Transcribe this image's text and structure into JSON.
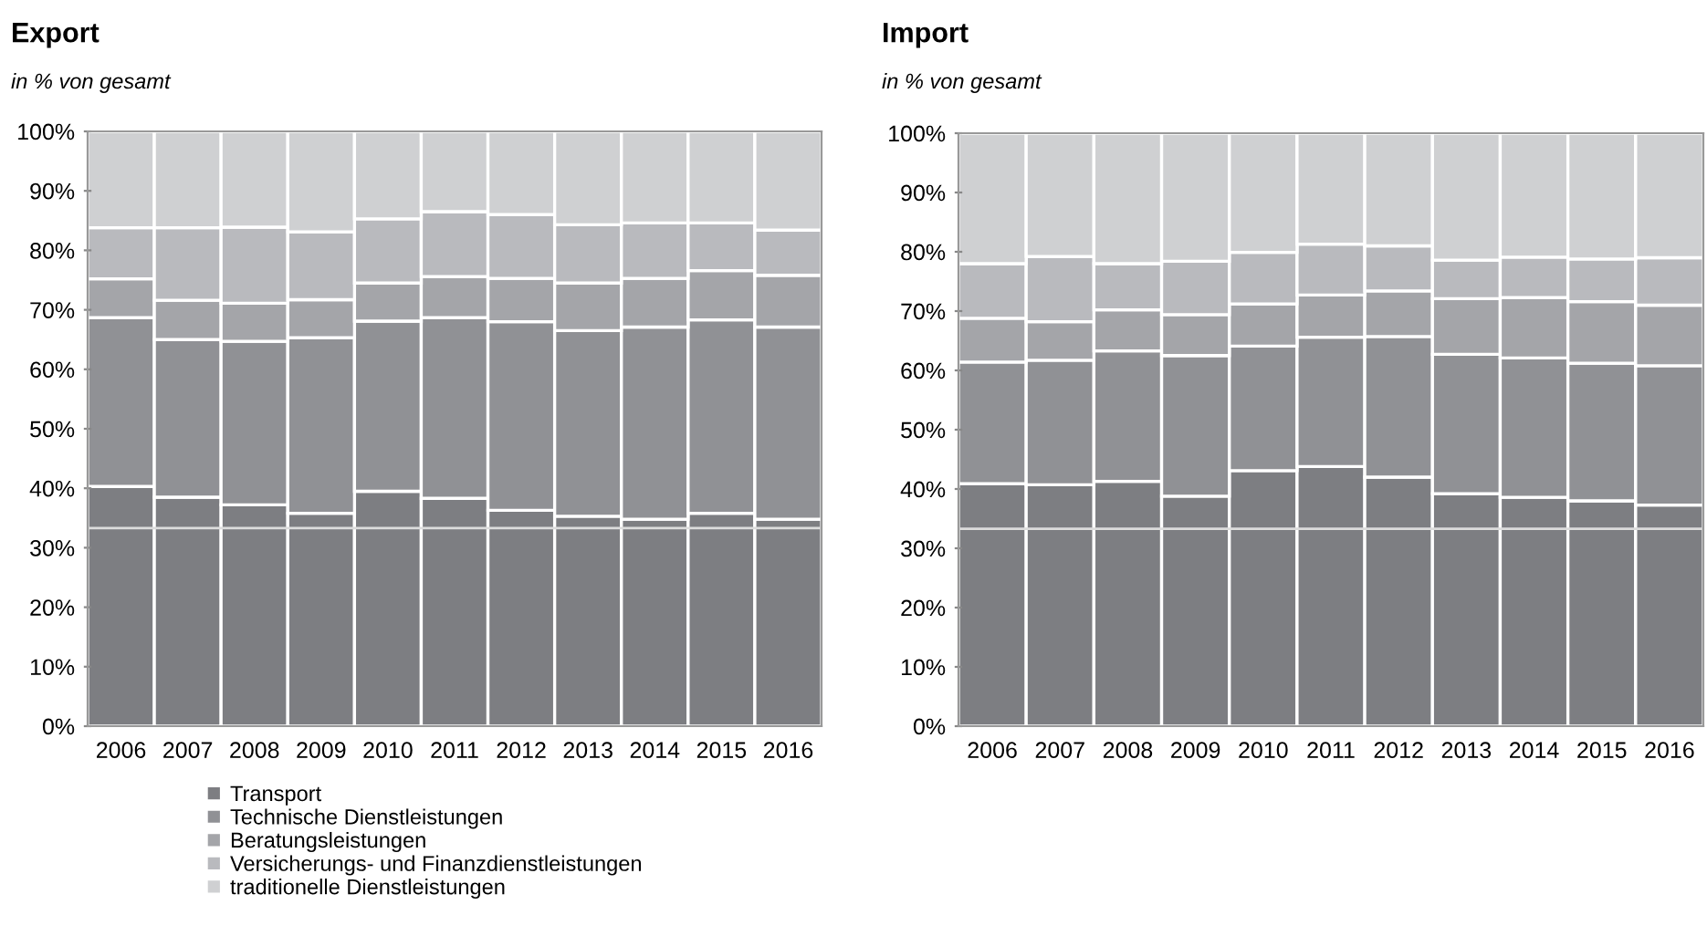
{
  "chart_data": [
    {
      "type": "bar",
      "title": "Export",
      "subtitle": "in % von gesamt",
      "stacked": true,
      "legend": "bottom",
      "categories": [
        "2006",
        "2007",
        "2008",
        "2009",
        "2010",
        "2011",
        "2012",
        "2013",
        "2014",
        "2015",
        "2016"
      ],
      "series": [
        {
          "name": "Transport",
          "color": "#7d7e82",
          "values": [
            40.3,
            38.5,
            37.2,
            35.8,
            39.5,
            38.3,
            36.3,
            35.3,
            34.8,
            35.8,
            34.8
          ]
        },
        {
          "name": "Technische Dienstleistungen",
          "color": "#909195",
          "values": [
            28.4,
            26.5,
            27.5,
            29.5,
            28.6,
            30.4,
            31.7,
            31.2,
            32.3,
            32.5,
            32.3
          ]
        },
        {
          "name": "Beratungsleistungen",
          "color": "#a4a5a9",
          "values": [
            6.5,
            6.6,
            6.4,
            6.4,
            6.4,
            6.9,
            7.3,
            8.0,
            8.2,
            8.3,
            8.7
          ]
        },
        {
          "name": "Versicherungs- und Finanzdienstleistungen",
          "color": "#b9babe",
          "values": [
            8.6,
            12.2,
            12.8,
            11.4,
            10.8,
            10.9,
            10.7,
            9.8,
            9.3,
            8.0,
            7.6
          ]
        },
        {
          "name": "traditionelle Dienstleistungen",
          "color": "#cfd0d2",
          "values": [
            16.2,
            16.2,
            16.1,
            16.9,
            14.7,
            13.5,
            14.0,
            15.7,
            15.4,
            15.4,
            16.6
          ]
        }
      ],
      "ylim": [
        0,
        100
      ],
      "yticks": [
        {
          "value": 0,
          "label": "0%"
        },
        {
          "value": 10,
          "label": "10%"
        },
        {
          "value": 20,
          "label": "20%"
        },
        {
          "value": 30,
          "label": "30%"
        },
        {
          "value": 40,
          "label": "40%"
        },
        {
          "value": 50,
          "label": "50%"
        },
        {
          "value": 60,
          "label": "60%"
        },
        {
          "value": 70,
          "label": "70%"
        },
        {
          "value": 80,
          "label": "80%"
        },
        {
          "value": 90,
          "label": "90%"
        },
        {
          "value": 100,
          "label": "100%"
        }
      ],
      "ref_lines": [
        {
          "axis": "y",
          "value": 33.3,
          "color": "#dcdcdc"
        }
      ]
    },
    {
      "type": "bar",
      "title": "Import",
      "subtitle": "in % von gesamt",
      "stacked": true,
      "categories": [
        "2006",
        "2007",
        "2008",
        "2009",
        "2010",
        "2011",
        "2012",
        "2013",
        "2014",
        "2015",
        "2016"
      ],
      "series": [
        {
          "color": "#7d7e82",
          "values": [
            40.9,
            40.7,
            41.3,
            38.8,
            43.1,
            43.8,
            42.0,
            39.2,
            38.6,
            38.0,
            37.3
          ]
        },
        {
          "color": "#909195",
          "values": [
            20.5,
            21.0,
            22.0,
            23.7,
            21.0,
            21.8,
            23.7,
            23.5,
            23.5,
            23.2,
            23.5
          ]
        },
        {
          "color": "#a4a5a9",
          "values": [
            7.4,
            6.5,
            6.9,
            6.9,
            7.1,
            7.1,
            7.7,
            9.4,
            10.2,
            10.4,
            10.2
          ]
        },
        {
          "color": "#b9babe",
          "values": [
            9.2,
            11.0,
            7.8,
            9.0,
            8.7,
            8.6,
            7.6,
            6.5,
            6.8,
            7.2,
            8.0
          ]
        },
        {
          "color": "#cfd0d2",
          "values": [
            22.0,
            20.8,
            22.0,
            21.6,
            20.1,
            18.7,
            19.0,
            21.4,
            20.9,
            21.2,
            21.0
          ]
        }
      ],
      "ylim": [
        0,
        100
      ],
      "yticks": [
        {
          "value": 0,
          "label": "0%"
        },
        {
          "value": 10,
          "label": "10%"
        },
        {
          "value": 20,
          "label": "20%"
        },
        {
          "value": 30,
          "label": "30%"
        },
        {
          "value": 40,
          "label": "40%"
        },
        {
          "value": 50,
          "label": "50%"
        },
        {
          "value": 60,
          "label": "60%"
        },
        {
          "value": 70,
          "label": "70%"
        },
        {
          "value": 80,
          "label": "80%"
        },
        {
          "value": 90,
          "label": "90%"
        },
        {
          "value": 100,
          "label": "100%"
        }
      ],
      "ref_lines": [
        {
          "axis": "y",
          "value": 33.3,
          "color": "#dcdcdc"
        }
      ]
    }
  ]
}
